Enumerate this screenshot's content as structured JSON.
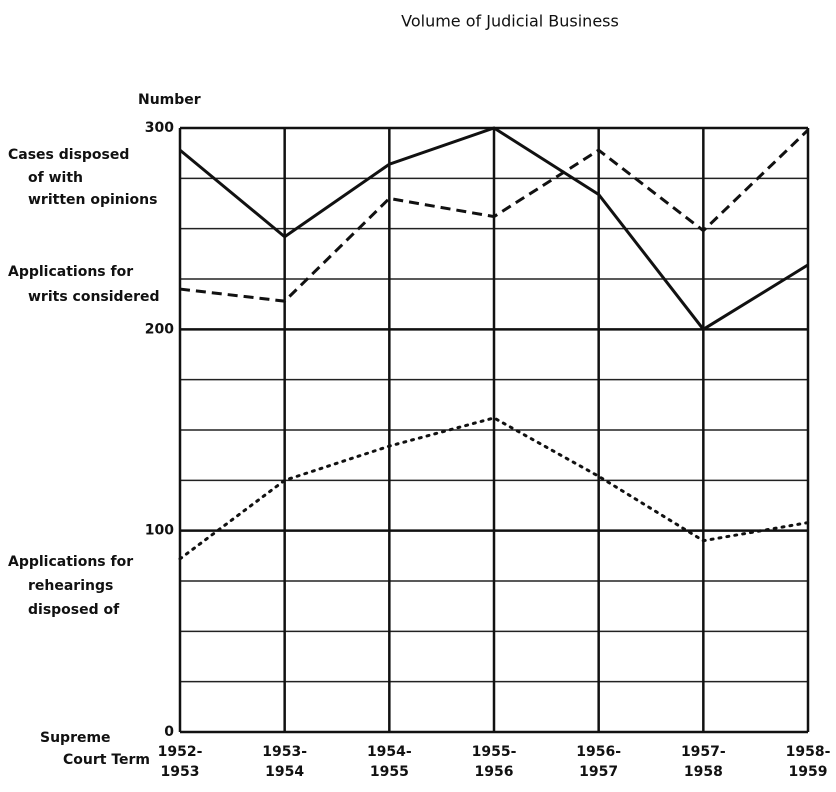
{
  "chart_data": {
    "type": "line",
    "title": "Volume of Judicial Business",
    "y_label": "Number",
    "x_label": [
      "Supreme",
      "Court Term"
    ],
    "categories": [
      [
        "1952-",
        "1953"
      ],
      [
        "1953-",
        "1954"
      ],
      [
        "1954-",
        "1955"
      ],
      [
        "1955-",
        "1956"
      ],
      [
        "1956-",
        "1957"
      ],
      [
        "1957-",
        "1958"
      ],
      [
        "1958-",
        "1959"
      ]
    ],
    "series": [
      {
        "name": [
          "Cases disposed",
          "of with",
          "written opinions"
        ],
        "color": "#111111",
        "dash": "solid",
        "values": [
          289,
          246,
          282,
          300,
          267,
          200,
          232
        ]
      },
      {
        "name": [
          "Applications for",
          "writs considered"
        ],
        "color": "#111111",
        "dash": "dashed",
        "values": [
          220,
          214,
          265,
          256,
          289,
          249,
          299
        ]
      },
      {
        "name": [
          "Applications for",
          "rehearings",
          "disposed of"
        ],
        "color": "#111111",
        "dash": "dotted",
        "values": [
          86,
          125,
          142,
          156,
          127,
          95,
          104
        ]
      }
    ],
    "ylim": [
      0,
      300
    ],
    "yticks": [
      0,
      100,
      200,
      300
    ],
    "minor_yticks": [
      25,
      50,
      75,
      125,
      150,
      175,
      225,
      250,
      275
    ],
    "grid": true
  }
}
